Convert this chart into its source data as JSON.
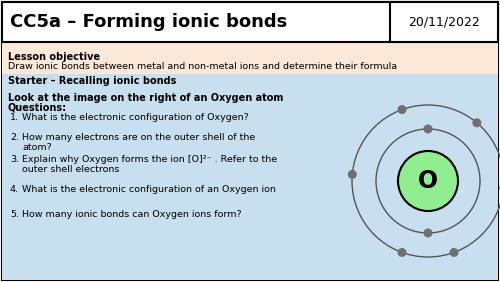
{
  "title": "CC5a – Forming ionic bonds",
  "date": "20/11/2022",
  "lesson_objective_label": "Lesson objective",
  "lesson_objective_text": "Draw ionic bonds between metal and non-metal ions and determine their formula",
  "starter_label": "Starter – Recalling ionic bonds",
  "instruction_line1": "Look at the image on the right of an Oxygen atom",
  "instruction_line2": "Questions:",
  "questions": [
    "What is the electronic configuration of Oxygen?",
    "How many electrons are on the outer shell of the\natom?",
    "Explain why Oxygen forms the ion [O]²⁻ . Refer to the\nouter shell electrons",
    "What is the electronic configuration of an Oxygen ion",
    "How many ionic bonds can Oxygen ions form?"
  ],
  "bg_color": "#ffffff",
  "objective_bg": "#fce8d8",
  "starter_bg": "#c8dff0",
  "questions_bg": "#c8dff0",
  "atom_symbol": "O",
  "atom_fill": "#90ee90",
  "electron_color": "#707070",
  "shell_color": "#555555",
  "title_fontsize": 13,
  "date_fontsize": 9,
  "label_fontsize": 7,
  "text_fontsize": 6.8,
  "question_fontsize": 6.8,
  "bold_fontsize": 7
}
